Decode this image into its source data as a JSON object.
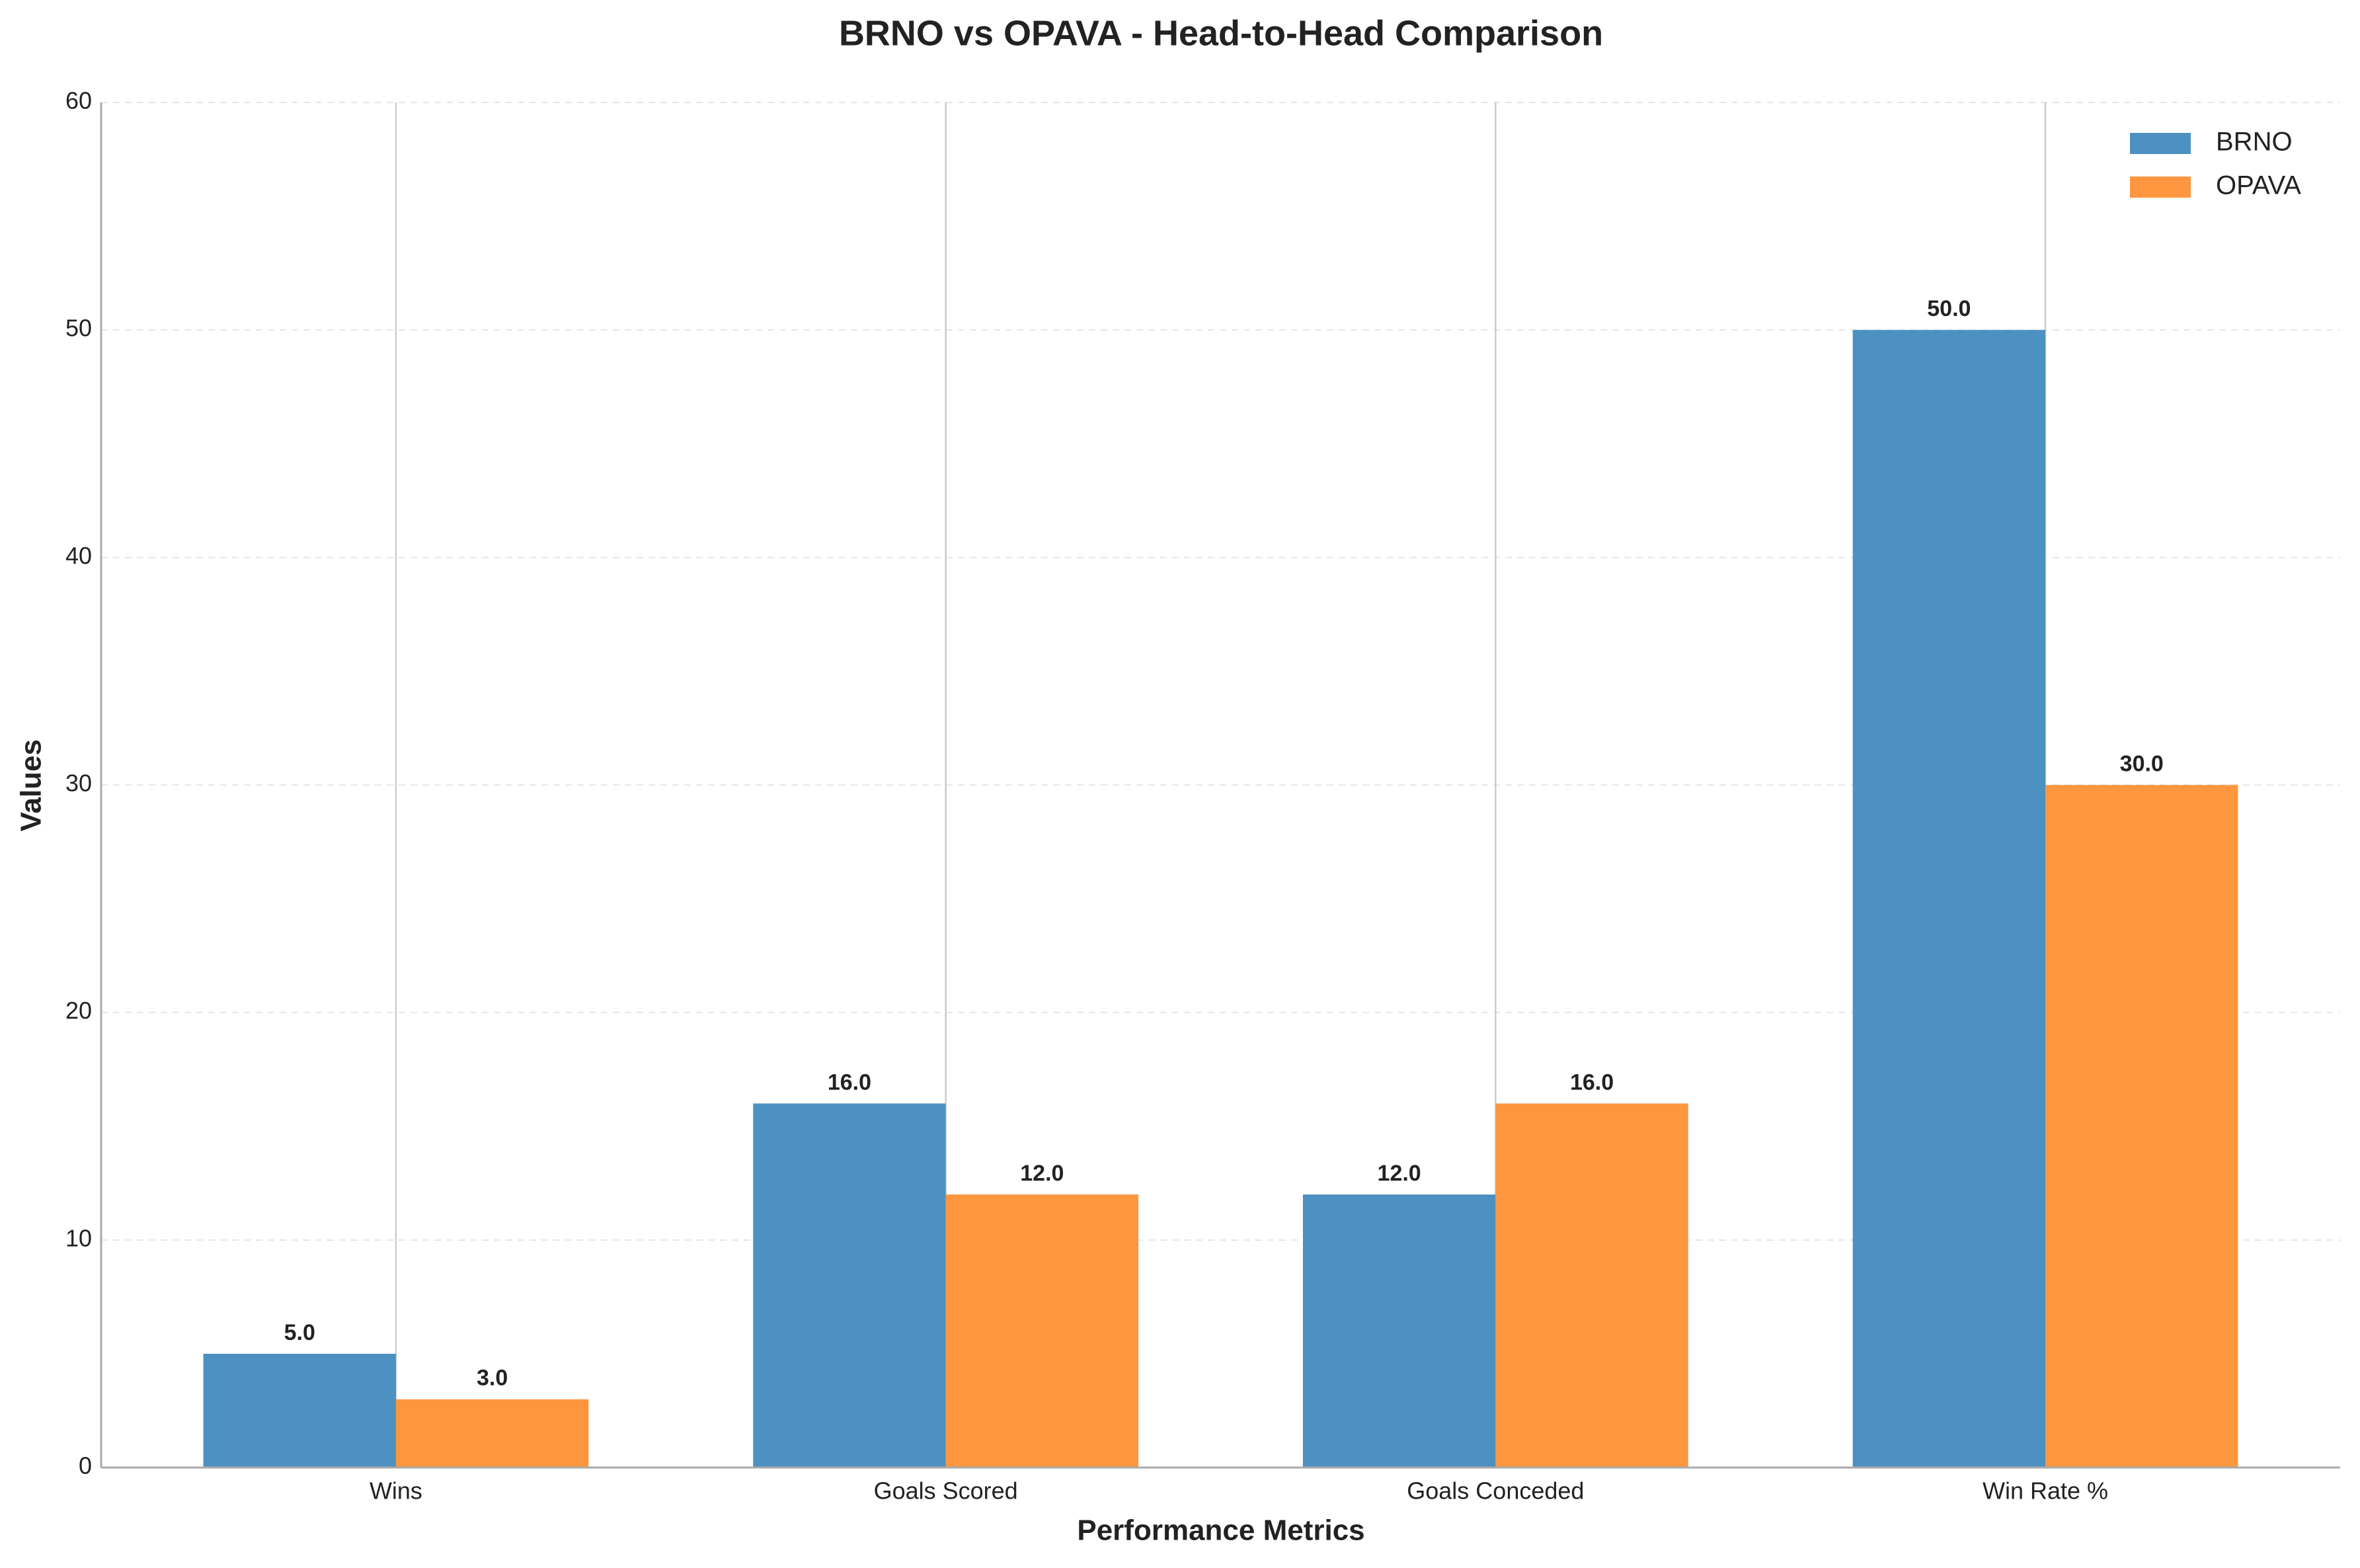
{
  "chart_data": {
    "type": "bar",
    "title": "BRNO vs OPAVA - Head-to-Head Comparison",
    "xlabel": "Performance Metrics",
    "ylabel": "Values",
    "categories": [
      "Wins",
      "Goals Scored",
      "Goals Conceded",
      "Win Rate %"
    ],
    "series": [
      {
        "name": "BRNO",
        "color": "#4c91c1",
        "values": [
          5,
          16,
          12,
          50
        ],
        "value_labels": [
          "5.0",
          "16.0",
          "12.0",
          "50.0"
        ]
      },
      {
        "name": "OPAVA",
        "color": "#fd963e",
        "values": [
          3,
          12,
          16,
          30
        ],
        "value_labels": [
          "3.0",
          "12.0",
          "16.0",
          "30.0"
        ]
      }
    ],
    "ylim": [
      0,
      60
    ],
    "yticks": [
      0,
      10,
      20,
      30,
      40,
      50,
      60
    ],
    "grid": true,
    "legend": "upper right"
  }
}
